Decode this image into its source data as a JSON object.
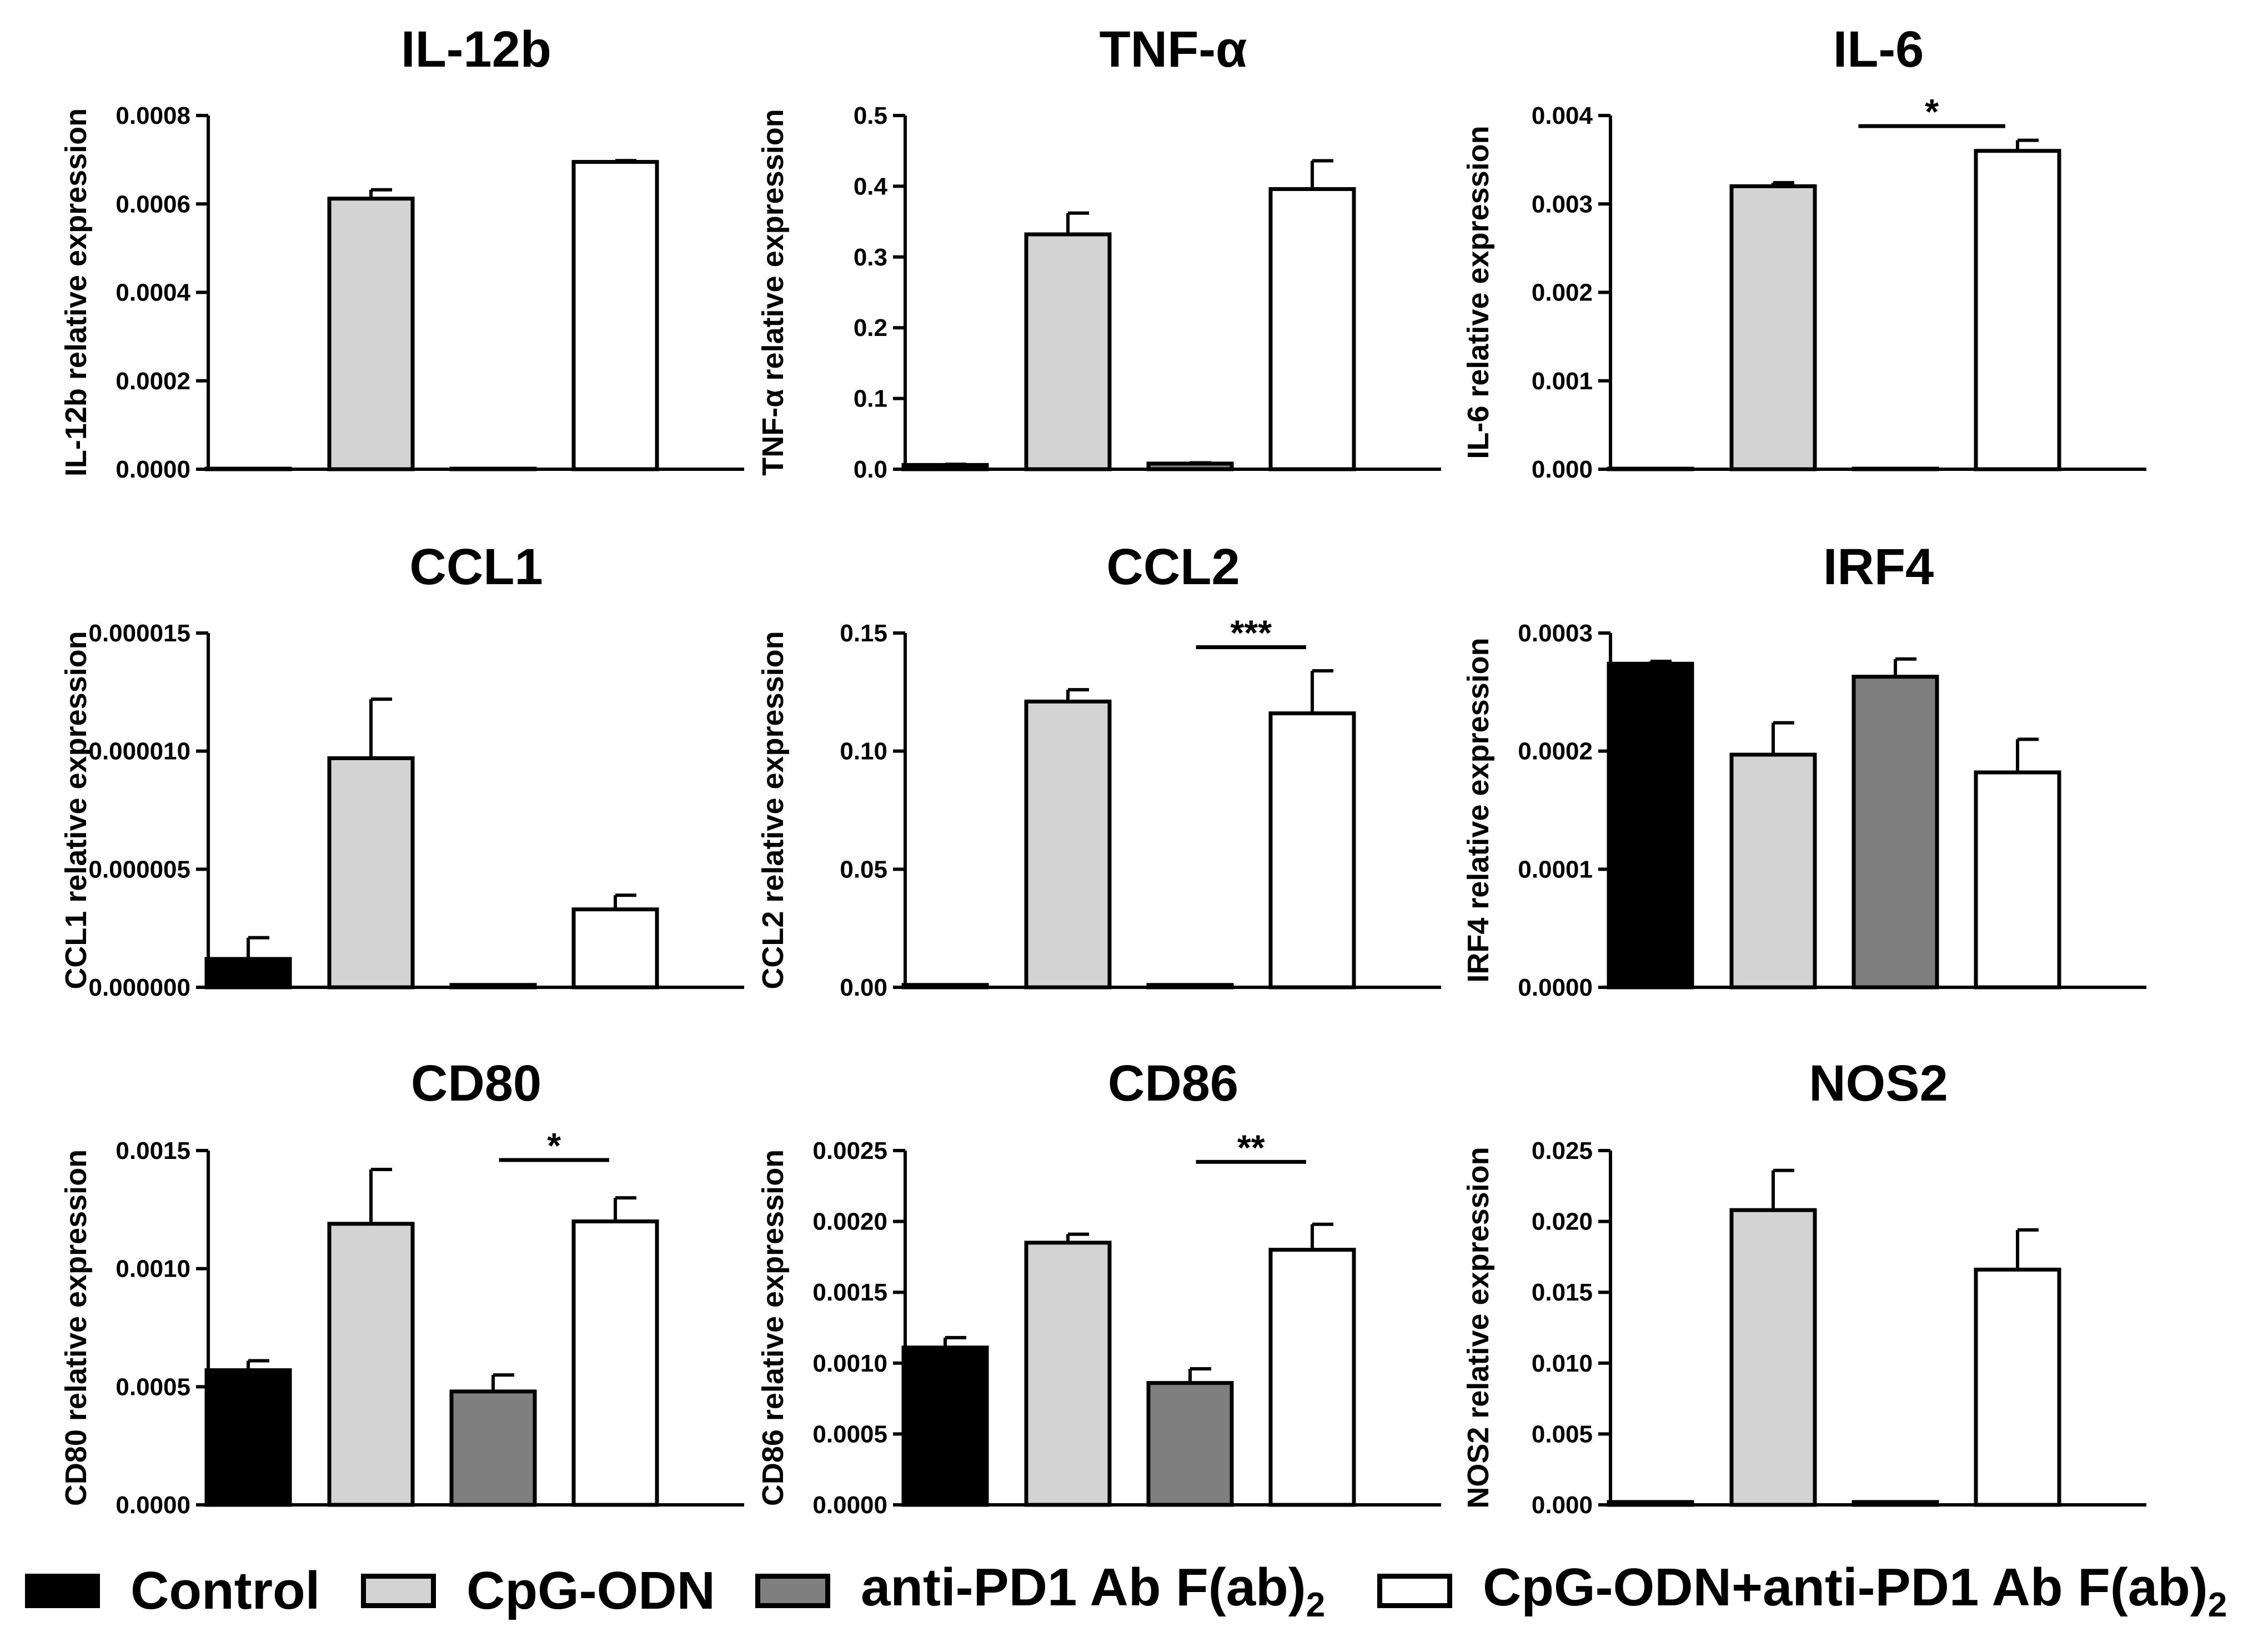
{
  "chart_data": [
    {
      "type": "bar",
      "title": "IL-12b",
      "ylabel": "IL-12b relative expression",
      "categories": [
        "Control",
        "CpG-ODN",
        "anti-PD1 Ab F(ab)2",
        "CpG-ODN+anti-PD1 Ab F(ab)2"
      ],
      "values": [
        0,
        0.000612,
        5e-07,
        0.000695
      ],
      "errors": [
        0,
        2e-05,
        0,
        3e-06
      ],
      "ylim": [
        0,
        0.0008
      ],
      "ticks": [
        "0.0000",
        "0.0002",
        "0.0004",
        "0.0006",
        "0.0008"
      ],
      "significance": null
    },
    {
      "type": "bar",
      "title": "TNF-α",
      "ylabel": "TNF-α relative expression",
      "categories": [
        "Control",
        "CpG-ODN",
        "anti-PD1 Ab F(ab)2",
        "CpG-ODN+anti-PD1 Ab F(ab)2"
      ],
      "values": [
        0.006,
        0.332,
        0.008,
        0.396
      ],
      "errors": [
        0.001,
        0.03,
        0.001,
        0.04
      ],
      "ylim": [
        0,
        0.5
      ],
      "ticks": [
        "0.0",
        "0.1",
        "0.2",
        "0.3",
        "0.4",
        "0.5"
      ],
      "significance": null
    },
    {
      "type": "bar",
      "title": "IL-6",
      "ylabel": "IL-6 relative expression",
      "categories": [
        "Control",
        "CpG-ODN",
        "anti-PD1 Ab F(ab)2",
        "CpG-ODN+anti-PD1 Ab F(ab)2"
      ],
      "values": [
        5e-06,
        0.0032,
        0,
        0.0036
      ],
      "errors": [
        0,
        4e-05,
        0,
        0.00012
      ],
      "ylim": [
        0,
        0.004
      ],
      "ticks": [
        "0.000",
        "0.001",
        "0.002",
        "0.003",
        "0.004"
      ],
      "significance": {
        "label": "*",
        "from": 1.7,
        "to": 2.9,
        "y": 0.00388
      }
    },
    {
      "type": "bar",
      "title": "CCL1",
      "ylabel": "CCL1 relative expression",
      "categories": [
        "Control",
        "CpG-ODN",
        "anti-PD1 Ab F(ab)2",
        "CpG-ODN+anti-PD1 Ab F(ab)2"
      ],
      "values": [
        1.2e-06,
        9.7e-06,
        1e-07,
        3.3e-06
      ],
      "errors": [
        9e-07,
        2.5e-06,
        0,
        6e-07
      ],
      "ylim": [
        0,
        1.5e-05
      ],
      "ticks": [
        "0.000000",
        "0.000005",
        "0.000010",
        "0.000015"
      ],
      "significance": null
    },
    {
      "type": "bar",
      "title": "CCL2",
      "ylabel": "CCL2 relative expression",
      "categories": [
        "Control",
        "CpG-ODN",
        "anti-PD1 Ab F(ab)2",
        "CpG-ODN+anti-PD1 Ab F(ab)2"
      ],
      "values": [
        0.001,
        0.121,
        0.001,
        0.116
      ],
      "errors": [
        0,
        0.005,
        0,
        0.018
      ],
      "ylim": [
        0,
        0.15
      ],
      "ticks": [
        "0.00",
        "0.05",
        "0.10",
        "0.15"
      ],
      "significance": {
        "label": "***",
        "from": 2.05,
        "to": 2.95,
        "y": 0.144
      }
    },
    {
      "type": "bar",
      "title": "IRF4",
      "ylabel": "IRF4 relative expression",
      "categories": [
        "Control",
        "CpG-ODN",
        "anti-PD1 Ab F(ab)2",
        "CpG-ODN+anti-PD1 Ab F(ab)2"
      ],
      "values": [
        0.000274,
        0.000197,
        0.000263,
        0.000182
      ],
      "errors": [
        2e-06,
        2.7e-05,
        1.5e-05,
        2.8e-05
      ],
      "ylim": [
        0,
        0.0003
      ],
      "ticks": [
        "0.0000",
        "0.0001",
        "0.0002",
        "0.0003"
      ],
      "significance": null
    },
    {
      "type": "bar",
      "title": "CD80",
      "ylabel": "CD80 relative expression",
      "categories": [
        "Control",
        "CpG-ODN",
        "anti-PD1 Ab F(ab)2",
        "CpG-ODN+anti-PD1 Ab F(ab)2"
      ],
      "values": [
        0.00057,
        0.00119,
        0.00048,
        0.0012
      ],
      "errors": [
        4e-05,
        0.00023,
        7e-05,
        0.0001
      ],
      "ylim": [
        0,
        0.0015
      ],
      "ticks": [
        "0.0000",
        "0.0005",
        "0.0010",
        "0.0015"
      ],
      "significance": {
        "label": "*",
        "from": 2.05,
        "to": 2.95,
        "y": 0.00146
      }
    },
    {
      "type": "bar",
      "title": "CD86",
      "ylabel": "CD86 relative expression",
      "categories": [
        "Control",
        "CpG-ODN",
        "anti-PD1 Ab F(ab)2",
        "CpG-ODN+anti-PD1 Ab F(ab)2"
      ],
      "values": [
        0.00111,
        0.00185,
        0.00086,
        0.0018
      ],
      "errors": [
        7e-05,
        6e-05,
        0.0001,
        0.00018
      ],
      "ylim": [
        0,
        0.0025
      ],
      "ticks": [
        "0.0000",
        "0.0005",
        "0.0010",
        "0.0015",
        "0.0020",
        "0.0025"
      ],
      "significance": {
        "label": "**",
        "from": 2.05,
        "to": 2.95,
        "y": 0.00242
      }
    },
    {
      "type": "bar",
      "title": "NOS2",
      "ylabel": "NOS2 relative expression",
      "categories": [
        "Control",
        "CpG-ODN",
        "anti-PD1 Ab F(ab)2",
        "CpG-ODN+anti-PD1 Ab F(ab)2"
      ],
      "values": [
        0.0002,
        0.0208,
        0.0002,
        0.0166
      ],
      "errors": [
        0,
        0.0028,
        0,
        0.0028
      ],
      "ylim": [
        0,
        0.025
      ],
      "ticks": [
        "0.000",
        "0.005",
        "0.010",
        "0.015",
        "0.020",
        "0.025"
      ],
      "significance": null
    }
  ],
  "series_colors": [
    "#000000",
    "#d3d3d3",
    "#7f7f7f",
    "#ffffff"
  ],
  "legend": {
    "items": [
      {
        "label": "Control",
        "color": "#000000"
      },
      {
        "label": "CpG-ODN",
        "color": "#d3d3d3"
      },
      {
        "label": "anti-PD1 Ab F(ab)",
        "subscript": "2",
        "color": "#7f7f7f"
      },
      {
        "label": "CpG-ODN+anti-PD1 Ab F(ab)",
        "subscript": "2",
        "color": "#ffffff"
      }
    ]
  }
}
